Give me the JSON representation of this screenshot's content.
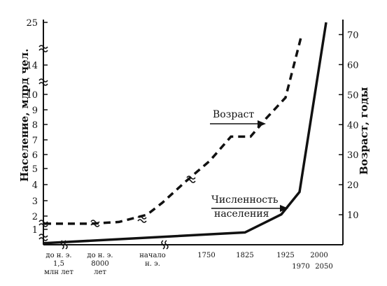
{
  "chart_data": {
    "type": "line",
    "ylabel_left": "Население, млрд чел.",
    "ylabel_right": "Возраст, годы",
    "left_axis": {
      "scale": "broken",
      "ticks": [
        "1",
        "2",
        "3",
        "4",
        "5",
        "6",
        "7",
        "8",
        "9",
        "10",
        "14",
        "25"
      ]
    },
    "right_axis": {
      "ticks": [
        "10",
        "20",
        "30",
        "40",
        "50",
        "60",
        "70"
      ],
      "ylim": [
        0,
        75
      ]
    },
    "x_ticks": [
      [
        "до н. э.",
        "1,5",
        "млн лет"
      ],
      [
        "до н. э.",
        "8000",
        "лет"
      ],
      [
        "начало",
        "н. э."
      ],
      [
        "1750"
      ],
      [
        "1825"
      ],
      [
        "1925"
      ],
      [
        "1970"
      ],
      [
        "2000"
      ],
      [
        "2050"
      ]
    ],
    "annotations": {
      "age": "Возраст",
      "population_line1": "Численность",
      "population_line2": "населения"
    },
    "series": [
      {
        "key": "age",
        "style": "dashed",
        "axis": "right",
        "points": [
          [
            "до н. э. 1,5 млн лет",
            7
          ],
          [
            "до н. э. 8000 лет",
            7
          ],
          [
            "",
            7.6
          ],
          [
            "",
            10
          ],
          [
            "",
            14
          ],
          [
            "",
            21
          ],
          [
            "",
            28
          ],
          [
            "",
            36
          ],
          [
            "1825",
            36
          ],
          [
            "",
            42
          ],
          [
            "",
            49
          ],
          [
            "",
            69
          ]
        ]
      },
      {
        "key": "population",
        "style": "solid",
        "axis": "left",
        "points": [
          [
            "до н. э. 1,5 млн лет",
            0.1
          ],
          [
            "1825",
            0.8
          ],
          [
            "1925",
            2.0
          ],
          [
            "",
            3.5
          ],
          [
            "2050",
            25
          ]
        ]
      }
    ]
  }
}
